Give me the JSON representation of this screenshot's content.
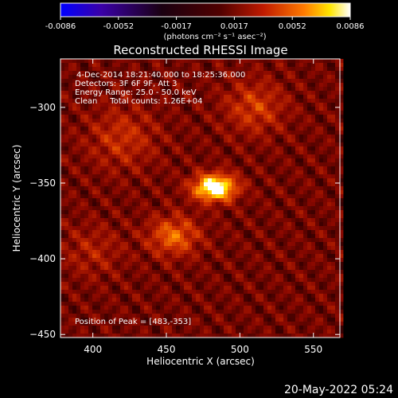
{
  "chart_data": {
    "type": "heatmap",
    "title": "Reconstructed RHESSI Image",
    "xlabel": "Heliocentric X (arcsec)",
    "ylabel": "Heliocentric Y (arcsec)",
    "xlim": [
      378,
      568
    ],
    "ylim": [
      -452,
      -268
    ],
    "x_ticks": [
      400,
      450,
      500,
      550
    ],
    "y_ticks": [
      -300,
      -350,
      -400,
      -450
    ],
    "colorbar": {
      "ticks": [
        "-0.0086",
        "-0.0052",
        "-0.0017",
        "0.0017",
        "0.0052",
        "0.0086"
      ],
      "range": [
        -0.0086,
        0.0086
      ],
      "unit_label": "(photons cm⁻² s⁻¹ asec⁻²)",
      "colors": [
        "#0000ff",
        "#3a00a8",
        "#1a0010",
        "#500000",
        "#c01a00",
        "#ff7a00",
        "#ffe600",
        "#ffffff"
      ]
    },
    "annotations": [
      "4-Dec-2014 18:21:40.000 to 18:25:36.000",
      "Detectors: 3F 6F 9F, Att 3",
      "Energy Range: 25.0 - 50.0 keV",
      "Clean     Total counts: 1.26E+04"
    ],
    "peak_text": "Position of Peak = [483,-353]",
    "peak": {
      "x": 483,
      "y": -353,
      "value": 0.0086
    },
    "sources": [
      {
        "x": 483,
        "y": -353,
        "value": 0.0086,
        "sx": 10,
        "sy": 6
      },
      {
        "x": 455,
        "y": -385,
        "value": 0.0038,
        "sx": 12,
        "sy": 9
      },
      {
        "x": 510,
        "y": -300,
        "value": 0.0026,
        "sx": 14,
        "sy": 12
      },
      {
        "x": 420,
        "y": -320,
        "value": 0.0022,
        "sx": 16,
        "sy": 14
      },
      {
        "x": 400,
        "y": -395,
        "value": 0.0015,
        "sx": 14,
        "sy": 12
      }
    ]
  },
  "footer": {
    "date": "20-May-2022 05:24"
  }
}
